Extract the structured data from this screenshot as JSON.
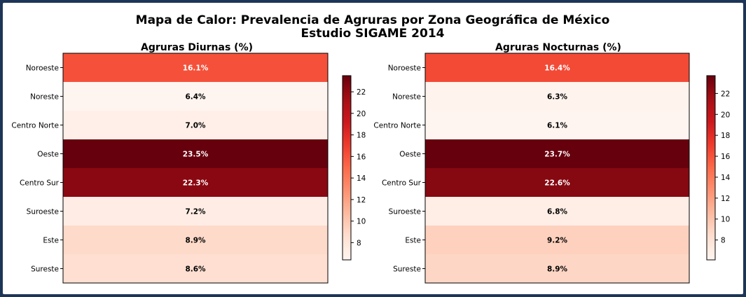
{
  "title_line1": "Mapa de Calor: Prevalencia de Agruras por Zona Geográfica de México",
  "title_line2": "Estudio SIGAME 2014",
  "colors": {
    "colormap": [
      "#fff5f0",
      "#fee0d2",
      "#fcbba1",
      "#fc9272",
      "#fb6a4a",
      "#ef3b2c",
      "#cb181d",
      "#a50f15",
      "#67000d"
    ],
    "text_dark": "#000000",
    "text_light": "#ffffff",
    "page_border": "#1d3557"
  },
  "chart_data": [
    {
      "type": "heatmap",
      "title": "Agruras Diurnas (%)",
      "categories": [
        "Noroeste",
        "Noreste",
        "Centro Norte",
        "Oeste",
        "Centro Sur",
        "Suroeste",
        "Este",
        "Sureste"
      ],
      "values": [
        16.1,
        6.4,
        7.0,
        23.5,
        22.3,
        7.2,
        8.9,
        8.6
      ],
      "value_labels": [
        "16.1%",
        "6.4%",
        "7.0%",
        "23.5%",
        "22.3%",
        "7.2%",
        "8.9%",
        "8.6%"
      ],
      "colorbar": {
        "range": [
          6.4,
          23.5
        ],
        "ticks": [
          8,
          10,
          12,
          14,
          16,
          18,
          20,
          22
        ],
        "tick_labels": [
          "8",
          "10",
          "12",
          "14",
          "16",
          "18",
          "20",
          "22"
        ]
      }
    },
    {
      "type": "heatmap",
      "title": "Agruras Nocturnas (%)",
      "categories": [
        "Noroeste",
        "Noreste",
        "Centro Norte",
        "Oeste",
        "Centro Sur",
        "Suroeste",
        "Este",
        "Sureste"
      ],
      "values": [
        16.4,
        6.3,
        6.1,
        23.7,
        22.6,
        6.8,
        9.2,
        8.9
      ],
      "value_labels": [
        "16.4%",
        "6.3%",
        "6.1%",
        "23.7%",
        "22.6%",
        "6.8%",
        "9.2%",
        "8.9%"
      ],
      "colorbar": {
        "range": [
          6.1,
          23.7
        ],
        "ticks": [
          8,
          10,
          12,
          14,
          16,
          18,
          20,
          22
        ],
        "tick_labels": [
          "8",
          "10",
          "12",
          "14",
          "16",
          "18",
          "20",
          "22"
        ]
      }
    }
  ]
}
